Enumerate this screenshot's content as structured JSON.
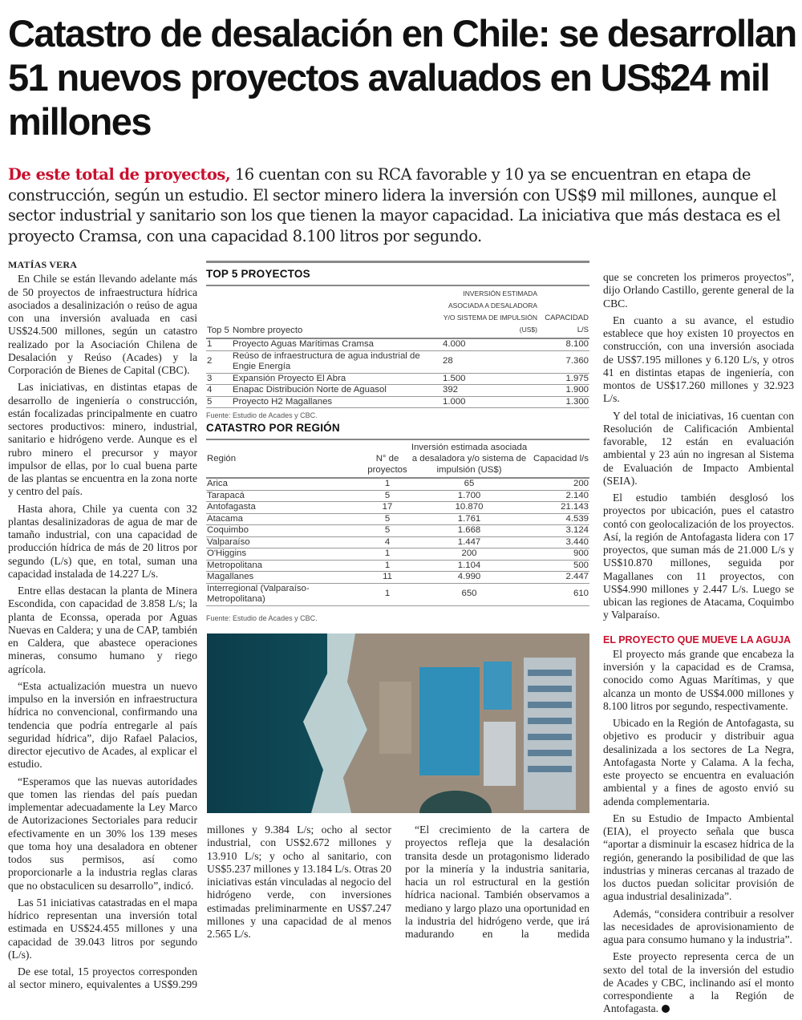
{
  "headline": "Catastro de desalación en Chile: se desarrollan 51 nuevos proyectos avaluados en US$24 mil millones",
  "deck": {
    "lead": "De este total de proyectos,",
    "text": " 16 cuentan con su RCA favorable y 10 ya se encuentran en etapa de construcción, según un estudio. El sector minero lidera la inversión con US$9 mil millones, aunque el sector industrial y sanitario son los que tienen la mayor capacidad. La iniciativa que más destaca es el proyecto Cramsa, con una capacidad 8.100 litros por segundo."
  },
  "byline": "MATÍAS VERA",
  "left_column": [
    "En Chile se están llevando adelante más de 50 proyectos de infraestructura hídrica asociados a desalinización o reúso de agua con una inversión avaluada en casi US$24.500 millones, según un catastro realizado por la Asociación Chilena de Desalación y Reúso (Acades) y la Corporación de Bienes de Capital (CBC).",
    "Las iniciativas, en distintas etapas de desarrollo de ingeniería o construcción, están focalizadas principalmente en cuatro sectores productivos: minero, industrial, sanitario e hidrógeno verde. Aunque es el rubro minero el precursor y mayor impulsor de ellas, por lo cual buena parte de las plantas se encuentra en la zona norte y centro del país.",
    "Hasta ahora, Chile ya cuenta con 32 plantas desalinizadoras de agua de mar de tamaño industrial, con una capacidad de producción hídrica de más de 20 litros por segundo (L/s) que, en total, suman una capacidad instalada de 14.227 L/s.",
    "Entre ellas destacan la planta de Minera Escondida, con capacidad de 3.858 L/s; la planta de Econssa, operada por Aguas Nuevas en Caldera; y una de CAP, también en Caldera, que abastece operaciones mineras, consumo humano y riego agrícola.",
    "“Esta actualización muestra un nuevo impulso en la inversión en infraestructura hídrica no convencional, confirmando una tendencia que podría entregarle al país seguridad hídrica”, dijo Rafael Palacios, director ejecutivo de Acades, al explicar el estudio.",
    "“Esperamos que las nuevas autoridades que tomen las riendas del país puedan implementar adecuadamente la Ley Marco de Autorizaciones Sectoriales para reducir efectivamente en un 30% los 139 meses que toma hoy una desaladora en obtener todos sus permisos, así como proporcionarle a la industria reglas claras que no obstaculicen su desarrollo”, indicó.",
    "Las 51 iniciativas catastradas en el mapa hídrico representan una inversión total estimada en US$24.455 millones y una capacidad de 39.043 litros por segundo (L/s).",
    "De ese total, 15 proyectos corresponden al sector minero, equivalentes a US$9.299"
  ],
  "top5": {
    "title": "TOP 5 PROYECTOS",
    "headers": [
      "Top 5",
      "Nombre proyecto",
      "Inversión estimada asociada a desaladora y/o sistema de impulsión (US$)",
      "Capacidad l/s"
    ],
    "rows": [
      [
        "1",
        "Proyecto Aguas Marítimas Cramsa",
        "4.000",
        "8.100"
      ],
      [
        "2",
        "Reúso de infraestructura de agua industrial de Engie Energía",
        "28",
        "7.360"
      ],
      [
        "3",
        "Expansión Proyecto El Abra",
        "1.500",
        "1.975"
      ],
      [
        "4",
        "Enapac Distribución Norte de Aguasol",
        "392",
        "1.900"
      ],
      [
        "5",
        "Proyecto H2 Magallanes",
        "1.000",
        "1.300"
      ]
    ],
    "source": "Fuente: Estudio de Acades y CBC."
  },
  "region": {
    "title": "CATASTRO POR REGIÓN",
    "headers": [
      "Región",
      "N° de proyectos",
      "Inversión estimada asociada a desaladora y/o sistema de impulsión (US$)",
      "Capacidad l/s"
    ],
    "rows": [
      [
        "Arica",
        "1",
        "65",
        "200"
      ],
      [
        "Tarapacá",
        "5",
        "1.700",
        "2.140"
      ],
      [
        "Antofagasta",
        "17",
        "10.870",
        "21.143"
      ],
      [
        "Atacama",
        "5",
        "1.761",
        "4.539"
      ],
      [
        "Coquimbo",
        "5",
        "1.668",
        "3.124"
      ],
      [
        "Valparaíso",
        "4",
        "1.447",
        "3.440"
      ],
      [
        "O'Higgins",
        "1",
        "200",
        "900"
      ],
      [
        "Metropolitana",
        "1",
        "1.104",
        "500"
      ],
      [
        "Magallanes",
        "11",
        "4.990",
        "2.447"
      ],
      [
        "Interregional (Valparaíso- Metropolitana)",
        "1",
        "650",
        "610"
      ]
    ],
    "source": "Fuente: Estudio de Acades y CBC."
  },
  "middle_left_column": [
    "millones y 9.384 L/s; ocho al sector industrial, con US$2.672 millones y 13.910 L/s; y ocho al sanitario, con US$5.237 millones y 13.184 L/s. Otras 20 iniciativas están vinculadas al negocio del hidrógeno verde, con inversiones estimadas preliminarmente en US$7.247 millones y una capacidad de al menos 2.565 L/s."
  ],
  "middle_right_column": [
    "“El crecimiento de la cartera de proyectos refleja que la desalación transita desde un protagonismo liderado por la minería y la industria sanitaria, hacia un rol estructural en la gestión hídrica nacional. También observamos a mediano y largo plazo una oportunidad en la industria del hidrógeno verde, que irá madurando en la medida"
  ],
  "right_column": [
    "que se concreten los primeros proyectos”, dijo Orlando Castillo, gerente general de la CBC.",
    "En cuanto a su avance, el estudio establece que hoy existen 10 proyectos en construcción, con una inversión asociada de US$7.195 millones y 6.120 L/s, y otros 41 en distintas etapas de ingeniería, con montos de US$17.260 millones y 32.923 L/s.",
    "Y del total de iniciativas, 16 cuentan con Resolución de Calificación Ambiental favorable, 12 están en evaluación ambiental y 23 aún no ingresan al Sistema de Evaluación de Impacto Ambiental (SEIA).",
    "El estudio también desglosó los proyectos por ubicación, pues el catastro contó con geolocalización de los proyectos. Así, la región de Antofagasta lidera con 17 proyectos, que suman más de 21.000 L/s y US$10.870 millones, seguida por Magallanes con 11 proyectos, con US$4.990 millones y 2.447 L/s. Luego se ubican las regiones de Atacama, Coquimbo y Valparaíso."
  ],
  "subhead": "EL PROYECTO QUE MUEVE LA AGUJA",
  "right_column_2": [
    "El proyecto más grande que encabeza la inversión y la capacidad es de Cramsa, conocido como Aguas Marítimas, y que alcanza un monto de US$4.000 millones y 8.100 litros por segundo, respectivamente.",
    "Ubicado en la Región de Antofagasta, su objetivo es producir y distribuir agua desalinizada a los sectores de La Negra, Antofagasta Norte y Calama. A la fecha, este proyecto se encuentra en evaluación ambiental y a fines de agosto envió su adenda complementaria.",
    "En su Estudio de Impacto Ambiental (EIA), el proyecto señala que busca “aportar a disminuir la escasez hídrica de la región, generando la posibilidad de que las industrias y mineras cercanas al trazado de los ductos puedan solicitar provisión de agua industrial desalinizada”.",
    "Además, “considera contribuir a resolver las necesidades de aprovisionamiento de agua para consumo humano y la industria”.",
    "Este proyecto representa cerca de un sexto del total de la inversión del estudio de Acades y CBC, inclinando así el monto correspondiente a la Región de Antofagasta."
  ],
  "colors": {
    "accent": "#c8102e",
    "text": "#222222",
    "rule": "#888888"
  }
}
